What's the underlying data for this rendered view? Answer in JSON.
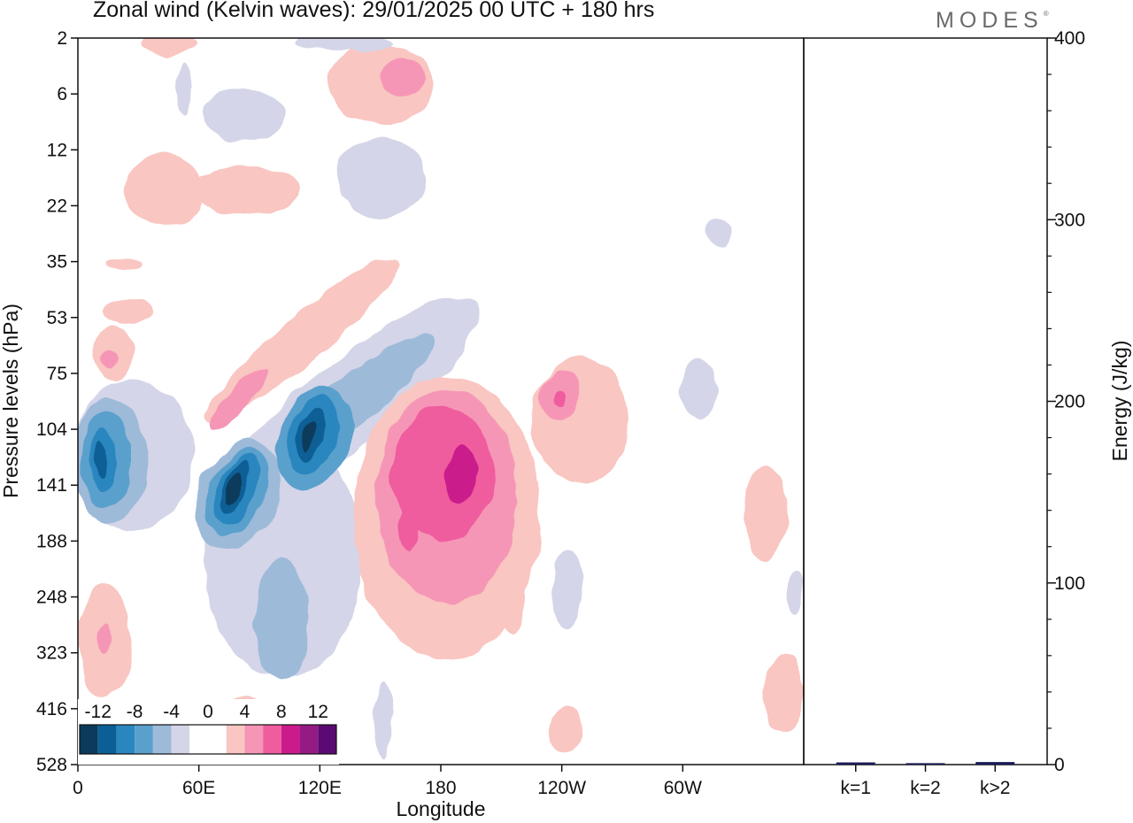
{
  "title": "Zonal wind (Kelvin waves):  29/01/2025  00 UTC  + 180 hrs",
  "brand": "MODES",
  "colors": {
    "negative": [
      "#0b3a5c",
      "#0a5f95",
      "#2a86bf",
      "#5aa0cc",
      "#9dbad9",
      "#d4d5e8"
    ],
    "neutral": "#ffffff",
    "positive": [
      "#f9c6c1",
      "#f696b6",
      "#ef5d9e",
      "#cb1a8c",
      "#951a83",
      "#5a0a72"
    ],
    "energy_bar": "#1a1a5a"
  },
  "chart_data": [
    {
      "type": "heatmap",
      "title": "Zonal wind (Kelvin waves):  29/01/2025  00 UTC  + 180 hrs",
      "xlabel": "Longitude",
      "ylabel": "Pressure levels (hPa)",
      "x_ticks": [
        "0",
        "60E",
        "120E",
        "180",
        "120W",
        "60W"
      ],
      "y_ticks": [
        "2",
        "6",
        "12",
        "22",
        "35",
        "53",
        "75",
        "104",
        "141",
        "188",
        "248",
        "323",
        "416",
        "528"
      ],
      "colorbar_labels": [
        "-12",
        "-8",
        "-4",
        "0",
        "4",
        "8",
        "12"
      ],
      "levels": [
        -14,
        -12,
        -10,
        -8,
        -6,
        -4,
        -2,
        2,
        4,
        6,
        8,
        10,
        12,
        14
      ],
      "features": [
        {
          "name": "negative anomaly near 15E",
          "lon": 15,
          "level": 141,
          "value": -12
        },
        {
          "name": "negative anomaly near 75E",
          "lon": 75,
          "level": 141,
          "value": -14
        },
        {
          "name": "negative anomaly near 115E",
          "lon": 115,
          "level": 120,
          "value": -13
        },
        {
          "name": "negative band near 130E",
          "lon": 130,
          "level": 75,
          "value": -6
        },
        {
          "name": "negative anomaly near 100E",
          "lon": 100,
          "level": 248,
          "value": -4
        },
        {
          "name": "positive anomaly near 185E",
          "lon": 185,
          "level": 141,
          "value": 12
        },
        {
          "name": "positive anomaly near 230E",
          "lon": 230,
          "level": 90,
          "value": 8
        },
        {
          "name": "positive band near 70E",
          "lon": 70,
          "level": 90,
          "value": 6
        },
        {
          "name": "positive patch near 260E",
          "lon": 260,
          "level": 141,
          "value": 2
        },
        {
          "name": "positive patch near 345E",
          "lon": 345,
          "level": 400,
          "value": 2
        },
        {
          "name": "positive patch near 15E",
          "lon": 15,
          "level": 323,
          "value": 6
        },
        {
          "name": "positive patch near 15E",
          "lon": 15,
          "level": 75,
          "value": 4
        },
        {
          "name": "positive patch near 165E",
          "lon": 165,
          "level": 6,
          "value": 6
        },
        {
          "name": "negative patch near 155E",
          "lon": 155,
          "level": 22,
          "value": -2
        }
      ]
    },
    {
      "type": "bar",
      "categories": [
        "k=1",
        "k=2",
        "k>2"
      ],
      "values": [
        1.2,
        0.8,
        1.4
      ],
      "ylabel": "Energy (J/kg)",
      "y_ticks": [
        "0",
        "100",
        "200",
        "300",
        "400"
      ],
      "ylim": [
        0,
        400
      ]
    }
  ]
}
